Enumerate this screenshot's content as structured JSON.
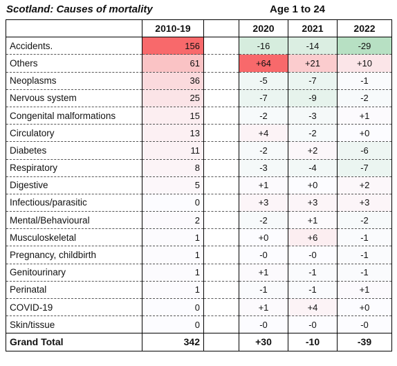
{
  "header": {
    "title": "Scotland: Causes of mortality",
    "subtitle": "Age  1 to 24"
  },
  "table": {
    "columns": [
      "",
      "2010-19",
      "",
      "2020",
      "2021",
      "2022"
    ],
    "rows": [
      {
        "cause": "Accidents.",
        "base": "156",
        "y2020": "-16",
        "y2021": "-14",
        "y2022": "-29"
      },
      {
        "cause": "Others",
        "base": "61",
        "y2020": "+64",
        "y2021": "+21",
        "y2022": "+10"
      },
      {
        "cause": "Neoplasms",
        "base": "36",
        "y2020": "-5",
        "y2021": "-7",
        "y2022": "-1"
      },
      {
        "cause": "Nervous system",
        "base": "25",
        "y2020": "-7",
        "y2021": "-9",
        "y2022": "-2"
      },
      {
        "cause": "Congenital malformations",
        "base": "15",
        "y2020": "-2",
        "y2021": "-3",
        "y2022": "+1"
      },
      {
        "cause": "Circulatory",
        "base": "13",
        "y2020": "+4",
        "y2021": "-2",
        "y2022": "+0"
      },
      {
        "cause": "Diabetes",
        "base": "11",
        "y2020": "-2",
        "y2021": "+2",
        "y2022": "-6"
      },
      {
        "cause": "Respiratory",
        "base": "8",
        "y2020": "-3",
        "y2021": "-4",
        "y2022": "-7"
      },
      {
        "cause": "Digestive",
        "base": "5",
        "y2020": "+1",
        "y2021": "+0",
        "y2022": "+2"
      },
      {
        "cause": "Infectious/parasitic",
        "base": "0",
        "y2020": "+3",
        "y2021": "+3",
        "y2022": "+3"
      },
      {
        "cause": "Mental/Behavioural",
        "base": "2",
        "y2020": "-2",
        "y2021": "+1",
        "y2022": "-2"
      },
      {
        "cause": "Musculoskeletal",
        "base": "1",
        "y2020": "+0",
        "y2021": "+6",
        "y2022": "-1"
      },
      {
        "cause": "Pregnancy, childbirth",
        "base": "1",
        "y2020": "-0",
        "y2021": "-0",
        "y2022": "-1"
      },
      {
        "cause": "Genitourinary",
        "base": "1",
        "y2020": "+1",
        "y2021": "-1",
        "y2022": "-1"
      },
      {
        "cause": "Perinatal",
        "base": "1",
        "y2020": "-1",
        "y2021": "-1",
        "y2022": "+1"
      },
      {
        "cause": "COVID-19",
        "base": "0",
        "y2020": "+1",
        "y2021": "+4",
        "y2022": "+0"
      },
      {
        "cause": "Skin/tissue",
        "base": "0",
        "y2020": "-0",
        "y2021": "-0",
        "y2022": "-0"
      }
    ],
    "total": {
      "cause": "Grand Total",
      "base": "342",
      "y2020": "+30",
      "y2021": "-10",
      "y2022": "-39"
    }
  },
  "colors": {
    "base_max": "#f8696b",
    "positive_max": "#f8696b",
    "negative_max": "#63be7b",
    "neutral": "#fcfcff"
  }
}
